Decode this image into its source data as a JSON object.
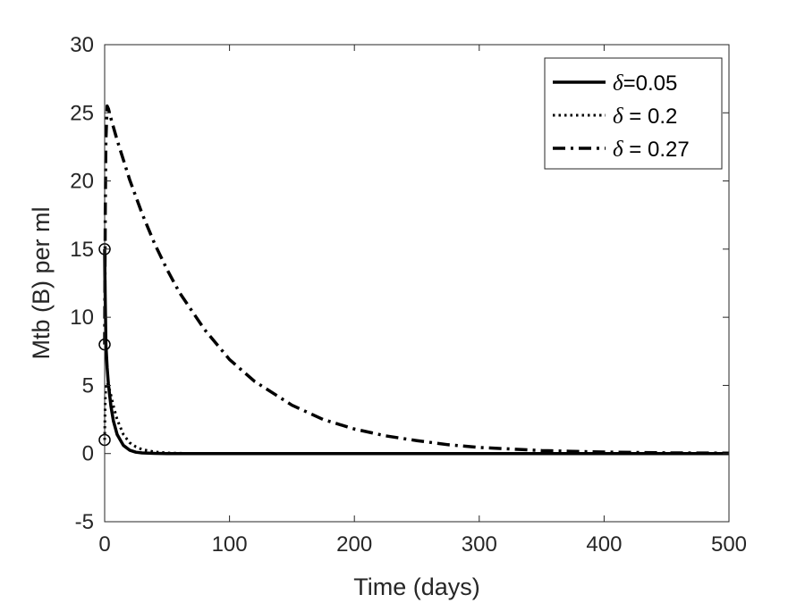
{
  "chart_data": {
    "type": "line",
    "xlabel": "Time (days)",
    "ylabel": "Mtb (B) per ml",
    "xlim": [
      0,
      500
    ],
    "ylim": [
      -5,
      30
    ],
    "xticks": [
      0,
      100,
      200,
      300,
      400,
      500
    ],
    "yticks": [
      -5,
      0,
      5,
      10,
      15,
      20,
      25,
      30
    ],
    "x_tick_labels": [
      "0",
      "100",
      "200",
      "300",
      "400",
      "500"
    ],
    "y_tick_labels": [
      "-5",
      "0",
      "5",
      "10",
      "15",
      "20",
      "25",
      "30"
    ],
    "grid": false,
    "legend_position": "top-right",
    "series": [
      {
        "name_symbol": "δ",
        "name_rest": "=0.05",
        "style": "solid",
        "x": [
          0,
          0.2,
          0.5,
          1,
          2,
          3,
          5,
          7,
          10,
          15,
          20,
          25,
          30,
          40,
          50,
          60,
          80,
          100,
          150,
          200,
          300,
          400,
          500
        ],
        "y": [
          15,
          13,
          11,
          8,
          6.3,
          5.1,
          3.5,
          2.4,
          1.4,
          0.6,
          0.25,
          0.1,
          0.05,
          0.01,
          0,
          0,
          0,
          0,
          0,
          0,
          0,
          0,
          0
        ]
      },
      {
        "name_symbol": "δ",
        "name_rest": " = 0.2",
        "style": "dotted",
        "x": [
          0,
          0.2,
          0.5,
          1,
          2,
          3,
          5,
          7,
          10,
          15,
          20,
          25,
          30,
          40,
          50,
          60,
          80,
          100,
          150,
          200,
          300,
          400,
          500
        ],
        "y": [
          1,
          2.5,
          4,
          5,
          5.2,
          5,
          4.3,
          3.5,
          2.5,
          1.4,
          0.8,
          0.5,
          0.3,
          0.12,
          0.05,
          0.02,
          0,
          0,
          0,
          0,
          0,
          0,
          0
        ]
      },
      {
        "name_symbol": "δ",
        "name_rest": " = 0.27",
        "style": "dashdot",
        "x": [
          0,
          0.5,
          1,
          2,
          3,
          5,
          10,
          20,
          30,
          40,
          50,
          60,
          80,
          100,
          120,
          150,
          175,
          200,
          225,
          250,
          275,
          300,
          350,
          400,
          450,
          500
        ],
        "y": [
          8,
          18,
          23,
          25.5,
          25.3,
          24.6,
          23,
          20.1,
          17.6,
          15.4,
          13.5,
          11.8,
          9.1,
          6.9,
          5.3,
          3.55,
          2.5,
          1.8,
          1.3,
          0.95,
          0.65,
          0.45,
          0.22,
          0.11,
          0.05,
          0.03
        ]
      }
    ],
    "initial_points": [
      {
        "x": 0,
        "y": 15
      },
      {
        "x": 0,
        "y": 8
      },
      {
        "x": 0,
        "y": 1
      }
    ]
  }
}
